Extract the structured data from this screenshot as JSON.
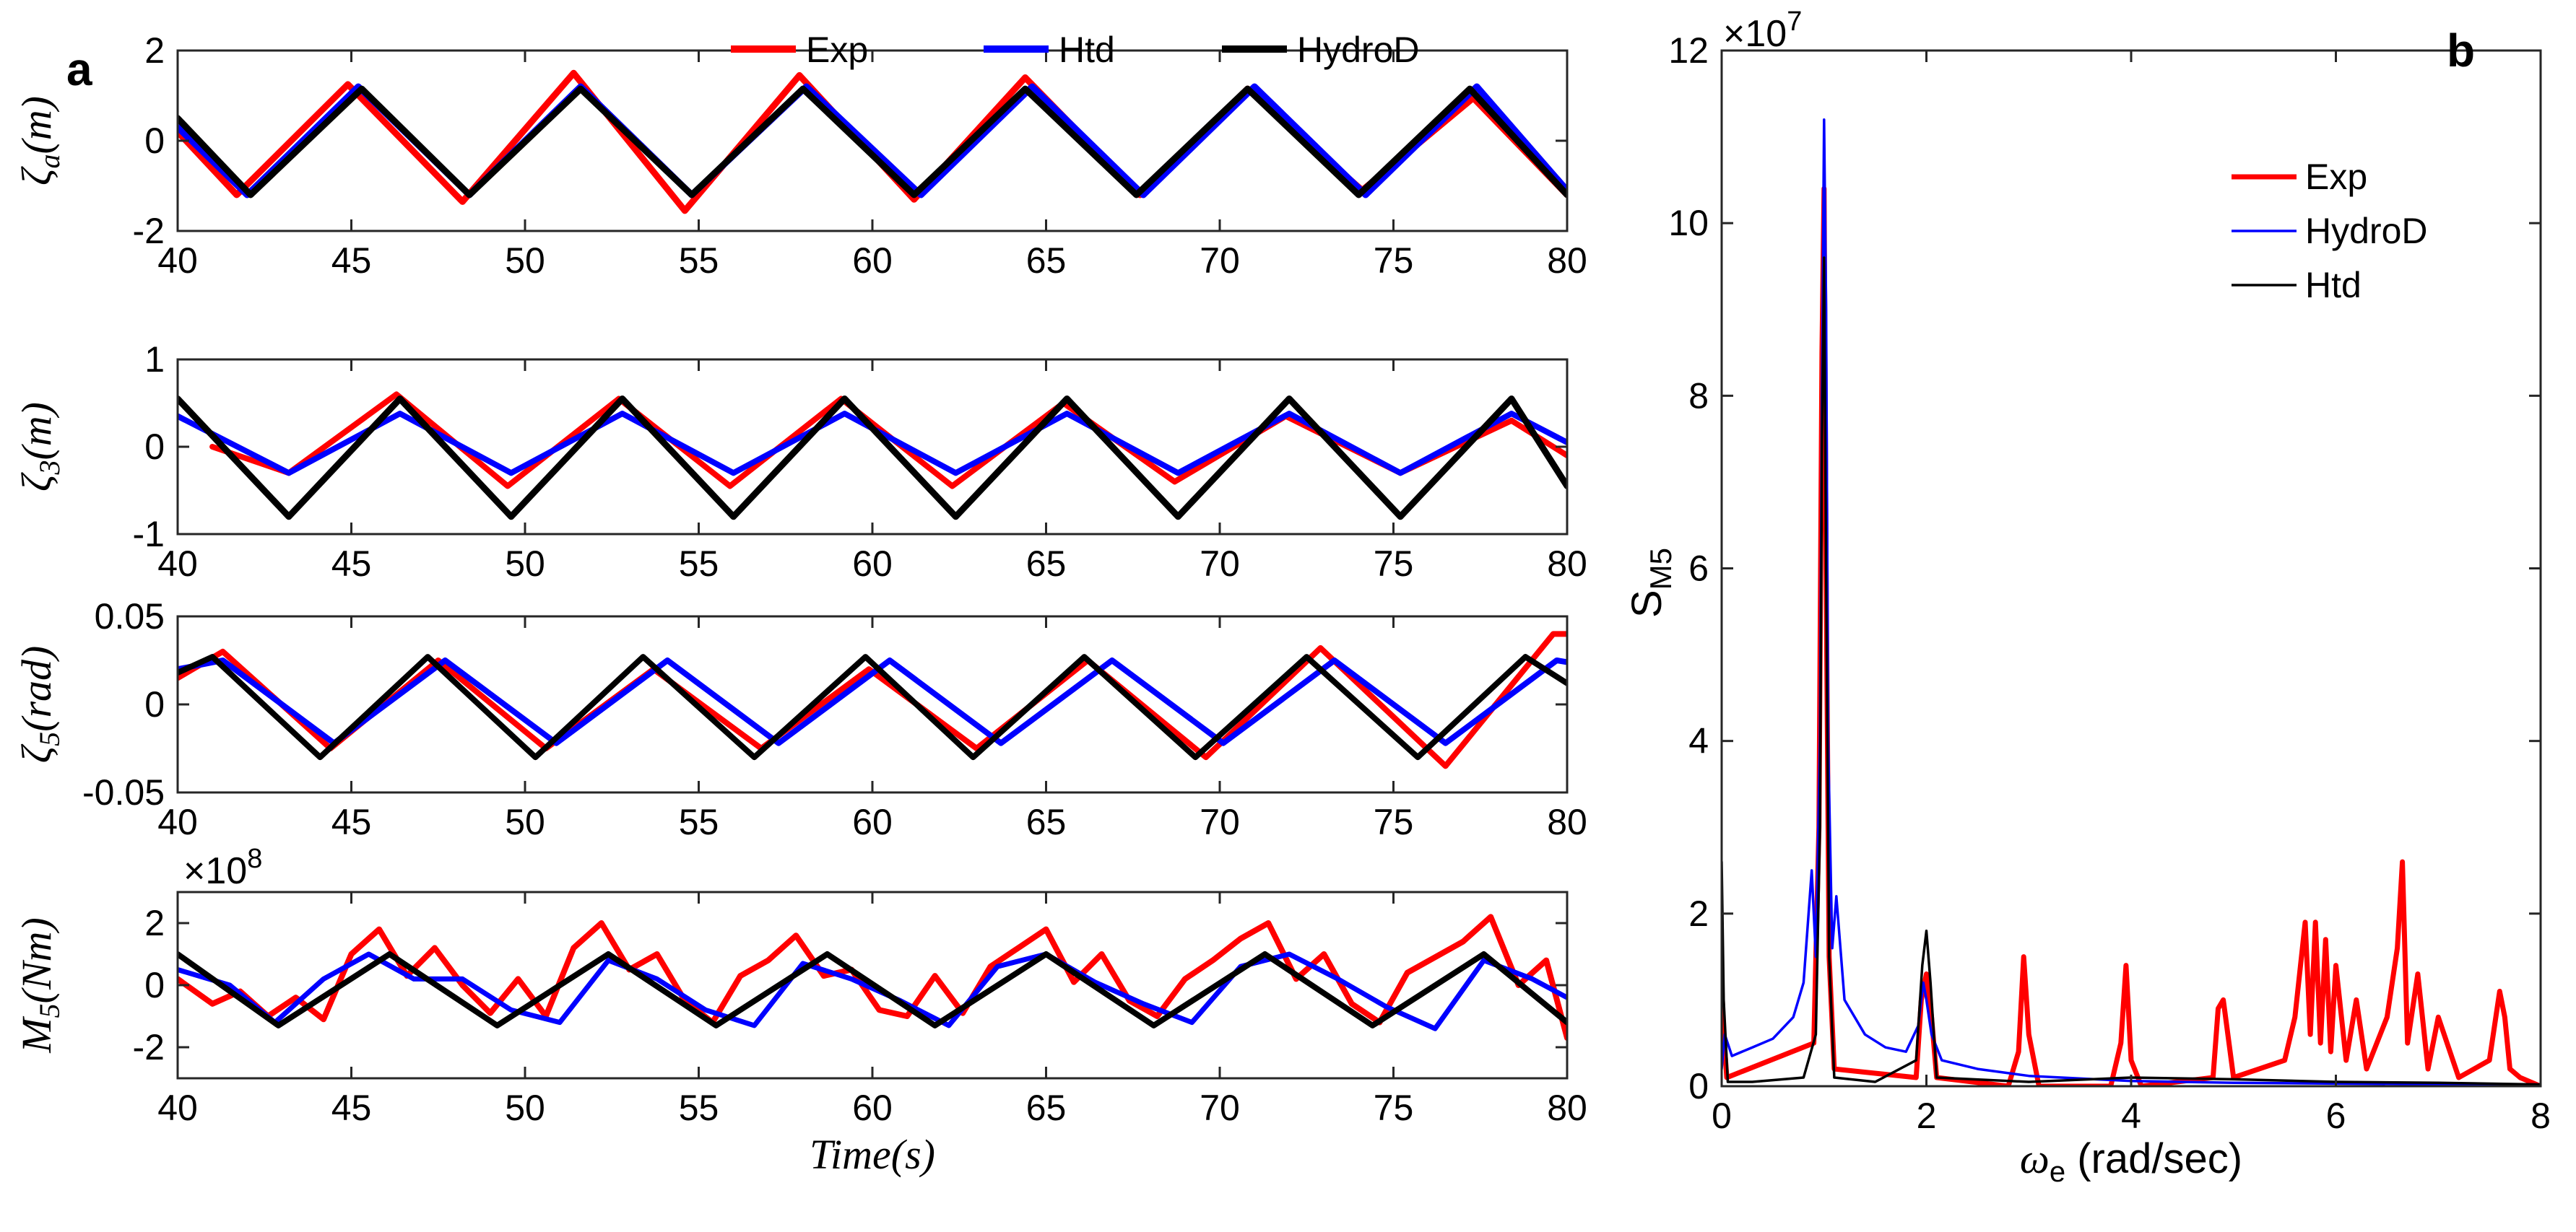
{
  "figure": {
    "panel_a_label": "a",
    "panel_b_label": "b",
    "x_axis_title": "Time(s)"
  },
  "legend_a": [
    {
      "label": "Exp",
      "color": "#ff0000"
    },
    {
      "label": "Htd",
      "color": "#0000ff"
    },
    {
      "label": "HydroD",
      "color": "#000000"
    }
  ],
  "legend_b": [
    {
      "label": "Exp",
      "color": "#ff0000"
    },
    {
      "label": "HydroD",
      "color": "#0000ff"
    },
    {
      "label": "Htd",
      "color": "#000000"
    }
  ],
  "chart_data": [
    {
      "type": "line",
      "panel": "a1",
      "ylabel": "ζa(m)",
      "xlabel": "",
      "xlim": [
        40,
        80
      ],
      "ylim": [
        -2,
        2
      ],
      "xticks": [
        40,
        45,
        50,
        55,
        60,
        65,
        70,
        75,
        80
      ],
      "yticks": [
        -2,
        0,
        2
      ],
      "series": [
        {
          "name": "Exp",
          "color": "#ff0000",
          "x": [
            40,
            41.7,
            44.9,
            48.2,
            51.4,
            54.6,
            57.9,
            61.2,
            64.4,
            67.7,
            70.8,
            74.1,
            77.3,
            80
          ],
          "y": [
            0.2,
            -1.2,
            1.25,
            -1.35,
            1.5,
            -1.55,
            1.45,
            -1.3,
            1.4,
            -1.2,
            1.15,
            -1.1,
            0.95,
            -1.2
          ]
        },
        {
          "name": "Htd",
          "color": "#0000ff",
          "x": [
            40,
            42.0,
            45.2,
            48.4,
            51.6,
            54.8,
            58.1,
            61.4,
            64.6,
            67.8,
            71.0,
            74.2,
            77.4,
            80
          ],
          "y": [
            0.3,
            -1.2,
            1.2,
            -1.2,
            1.2,
            -1.2,
            1.2,
            -1.2,
            1.2,
            -1.2,
            1.2,
            -1.2,
            1.2,
            -1.1
          ]
        },
        {
          "name": "HydroD",
          "color": "#000000",
          "x": [
            40,
            42.1,
            45.3,
            48.4,
            51.6,
            54.8,
            58.0,
            61.2,
            64.4,
            67.6,
            70.8,
            74.0,
            77.2,
            80
          ],
          "y": [
            0.5,
            -1.2,
            1.15,
            -1.2,
            1.15,
            -1.2,
            1.15,
            -1.2,
            1.15,
            -1.2,
            1.15,
            -1.2,
            1.15,
            -1.2
          ]
        }
      ]
    },
    {
      "type": "line",
      "panel": "a2",
      "ylabel": "ζ3(m)",
      "xlabel": "",
      "xlim": [
        40,
        80
      ],
      "ylim": [
        -1,
        1
      ],
      "xticks": [
        40,
        45,
        50,
        55,
        60,
        65,
        70,
        75,
        80
      ],
      "yticks": [
        -1,
        0,
        1
      ],
      "series": [
        {
          "name": "Exp",
          "color": "#ff0000",
          "x": [
            41,
            43.2,
            46.3,
            49.5,
            52.7,
            55.9,
            59.1,
            62.3,
            65.5,
            68.7,
            71.9,
            75.2,
            78.4,
            80
          ],
          "y": [
            0.0,
            -0.3,
            0.6,
            -0.45,
            0.55,
            -0.45,
            0.55,
            -0.45,
            0.5,
            -0.4,
            0.35,
            -0.3,
            0.3,
            -0.1
          ]
        },
        {
          "name": "Htd",
          "color": "#0000ff",
          "x": [
            40,
            43.2,
            46.4,
            49.6,
            52.8,
            56.0,
            59.2,
            62.4,
            65.6,
            68.8,
            72.0,
            75.2,
            78.4,
            80
          ],
          "y": [
            0.35,
            -0.3,
            0.38,
            -0.3,
            0.38,
            -0.3,
            0.38,
            -0.3,
            0.38,
            -0.3,
            0.38,
            -0.3,
            0.38,
            0.05
          ]
        },
        {
          "name": "HydroD",
          "color": "#000000",
          "x": [
            40,
            43.2,
            46.4,
            49.6,
            52.8,
            56.0,
            59.2,
            62.4,
            65.6,
            68.8,
            72.0,
            75.2,
            78.4,
            80
          ],
          "y": [
            0.55,
            -0.8,
            0.55,
            -0.8,
            0.55,
            -0.8,
            0.55,
            -0.8,
            0.55,
            -0.8,
            0.55,
            -0.8,
            0.55,
            -0.45
          ]
        }
      ]
    },
    {
      "type": "line",
      "panel": "a3",
      "ylabel": "ζ5(rad)",
      "xlabel": "",
      "xlim": [
        40,
        80
      ],
      "ylim": [
        -0.05,
        0.05
      ],
      "xticks": [
        40,
        45,
        50,
        55,
        60,
        65,
        70,
        75,
        80
      ],
      "yticks": [
        -0.05,
        0,
        0.05
      ],
      "ytick_labels": [
        "-0.05",
        "0",
        "0.05"
      ],
      "series": [
        {
          "name": "Exp",
          "color": "#ff0000",
          "x": [
            40,
            41.3,
            44.4,
            47.5,
            50.6,
            53.7,
            56.8,
            59.9,
            63.0,
            66.2,
            69.6,
            72.9,
            76.5,
            79.6,
            80
          ],
          "y": [
            0.015,
            0.03,
            -0.025,
            0.025,
            -0.025,
            0.02,
            -0.025,
            0.02,
            -0.025,
            0.025,
            -0.03,
            0.032,
            -0.035,
            0.04,
            0.04
          ]
        },
        {
          "name": "Htd",
          "color": "#0000ff",
          "x": [
            40,
            41.3,
            44.5,
            47.7,
            50.9,
            54.1,
            57.3,
            60.5,
            63.7,
            66.9,
            70.1,
            73.3,
            76.5,
            79.7,
            80
          ],
          "y": [
            0.02,
            0.025,
            -0.022,
            0.025,
            -0.022,
            0.025,
            -0.022,
            0.025,
            -0.022,
            0.025,
            -0.022,
            0.025,
            -0.022,
            0.025,
            0.024
          ]
        },
        {
          "name": "HydroD",
          "color": "#000000",
          "x": [
            40,
            41.0,
            44.1,
            47.2,
            50.3,
            53.4,
            56.6,
            59.8,
            62.9,
            66.1,
            69.3,
            72.5,
            75.7,
            78.8,
            80
          ],
          "y": [
            0.018,
            0.027,
            -0.03,
            0.027,
            -0.03,
            0.027,
            -0.03,
            0.027,
            -0.03,
            0.027,
            -0.03,
            0.027,
            -0.03,
            0.027,
            0.012
          ]
        }
      ]
    },
    {
      "type": "line",
      "panel": "a4",
      "ylabel": "M5(Nm)",
      "xlabel": "Time(s)",
      "xlim": [
        40,
        80
      ],
      "ylim": [
        -3,
        3
      ],
      "y_multiplier": "×10^8",
      "xticks": [
        40,
        45,
        50,
        55,
        60,
        65,
        70,
        75,
        80
      ],
      "yticks": [
        -2,
        0,
        2
      ],
      "series": [
        {
          "name": "Exp",
          "color": "#ff0000",
          "x": [
            40,
            41,
            41.8,
            42.6,
            43.4,
            44.2,
            45,
            45.8,
            46.6,
            47.4,
            48.2,
            49,
            49.8,
            50.6,
            51.4,
            52.2,
            53,
            53.8,
            54.6,
            55.4,
            56.2,
            57,
            57.8,
            58.6,
            59.4,
            60.2,
            61,
            61.8,
            62.6,
            63.4,
            64.2,
            65,
            65.8,
            66.6,
            67.4,
            68.2,
            69,
            69.8,
            70.6,
            71.4,
            72.2,
            73,
            73.8,
            74.6,
            75.4,
            76.2,
            77,
            77.8,
            78.6,
            79.4,
            80
          ],
          "y": [
            0.2,
            -0.6,
            -0.2,
            -1.0,
            -0.4,
            -1.1,
            1.0,
            1.8,
            0.3,
            1.2,
            0.0,
            -0.9,
            0.2,
            -1.0,
            1.2,
            2.0,
            0.5,
            1.0,
            -0.5,
            -1.2,
            0.3,
            0.8,
            1.6,
            0.3,
            0.5,
            -0.8,
            -1.0,
            0.3,
            -0.9,
            0.6,
            1.2,
            1.8,
            0.1,
            1.0,
            -0.5,
            -1.0,
            0.2,
            0.8,
            1.5,
            2.0,
            0.2,
            1.0,
            -0.6,
            -1.2,
            0.4,
            0.9,
            1.4,
            2.2,
            0.0,
            0.8,
            -1.7
          ]
        },
        {
          "name": "Htd",
          "color": "#0000ff",
          "x": [
            40,
            41.5,
            42.8,
            44.2,
            45.5,
            46.8,
            48.2,
            49.6,
            51.0,
            52.4,
            53.8,
            55.2,
            56.6,
            58.0,
            59.4,
            60.8,
            62.2,
            63.6,
            65.0,
            66.4,
            67.8,
            69.2,
            70.6,
            72.0,
            73.4,
            74.8,
            76.2,
            77.6,
            79.0,
            80
          ],
          "y": [
            0.5,
            0.0,
            -1.2,
            0.2,
            1.0,
            0.2,
            0.2,
            -0.8,
            -1.2,
            0.8,
            0.2,
            -0.8,
            -1.3,
            0.7,
            0.2,
            -0.5,
            -1.3,
            0.6,
            1.0,
            0.1,
            -0.6,
            -1.2,
            0.6,
            1.0,
            0.2,
            -0.7,
            -1.4,
            0.8,
            0.2,
            -0.4
          ]
        },
        {
          "name": "HydroD",
          "color": "#000000",
          "x": [
            40,
            42.9,
            46.1,
            49.2,
            52.4,
            55.5,
            58.7,
            61.8,
            65.0,
            68.1,
            71.3,
            74.4,
            77.6,
            80
          ],
          "y": [
            1.0,
            -1.3,
            1.0,
            -1.3,
            1.0,
            -1.3,
            1.0,
            -1.3,
            1.0,
            -1.3,
            1.0,
            -1.3,
            1.0,
            -1.2
          ]
        }
      ]
    },
    {
      "type": "line",
      "panel": "b",
      "ylabel": "S_M5",
      "xlabel": "ωe (rad/sec)",
      "xlim": [
        0,
        8
      ],
      "ylim": [
        0,
        12
      ],
      "y_multiplier": "×10^7",
      "xticks": [
        0,
        2,
        4,
        6,
        8
      ],
      "yticks": [
        0,
        2,
        4,
        6,
        8,
        10,
        12
      ],
      "series": [
        {
          "name": "Exp",
          "color": "#ff0000",
          "x": [
            0,
            0.02,
            0.05,
            0.9,
            0.95,
            0.98,
            1.0,
            1.02,
            1.05,
            1.1,
            1.9,
            1.95,
            2.0,
            2.05,
            2.1,
            2.8,
            2.9,
            2.95,
            3.0,
            3.1,
            3.8,
            3.9,
            3.95,
            4.0,
            4.1,
            4.8,
            4.85,
            4.9,
            5.0,
            5.5,
            5.6,
            5.7,
            5.75,
            5.8,
            5.85,
            5.9,
            5.95,
            6.0,
            6.1,
            6.2,
            6.3,
            6.5,
            6.6,
            6.65,
            6.7,
            6.8,
            6.9,
            7.0,
            7.2,
            7.5,
            7.6,
            7.65,
            7.7,
            7.8,
            8.0
          ],
          "y": [
            1.2,
            0.6,
            0.1,
            0.5,
            3.0,
            8.5,
            10.4,
            6.0,
            1.5,
            0.2,
            0.1,
            1.0,
            1.3,
            0.8,
            0.1,
            0.0,
            0.4,
            1.5,
            0.6,
            0.0,
            0.0,
            0.5,
            1.4,
            0.3,
            0.0,
            0.1,
            0.9,
            1.0,
            0.1,
            0.3,
            0.8,
            1.9,
            0.6,
            1.9,
            0.5,
            1.7,
            0.4,
            1.4,
            0.3,
            1.0,
            0.2,
            0.8,
            1.6,
            2.6,
            0.5,
            1.3,
            0.2,
            0.8,
            0.1,
            0.3,
            1.1,
            0.8,
            0.2,
            0.1,
            0.0
          ]
        },
        {
          "name": "HydroD",
          "color": "#0000ff",
          "x": [
            0,
            0.03,
            0.1,
            0.3,
            0.5,
            0.7,
            0.8,
            0.88,
            0.92,
            0.96,
            0.98,
            1.0,
            1.02,
            1.04,
            1.08,
            1.12,
            1.2,
            1.4,
            1.6,
            1.8,
            1.92,
            1.97,
            2.0,
            2.05,
            2.15,
            2.5,
            3.0,
            4.0,
            5.0,
            6.0,
            8.0
          ],
          "y": [
            0.2,
            0.6,
            0.35,
            0.45,
            0.55,
            0.8,
            1.2,
            2.5,
            1.5,
            4.0,
            8.0,
            11.2,
            9.0,
            4.0,
            1.6,
            2.2,
            1.0,
            0.6,
            0.45,
            0.4,
            0.7,
            1.2,
            1.0,
            0.6,
            0.3,
            0.2,
            0.12,
            0.06,
            0.04,
            0.03,
            0.02
          ]
        },
        {
          "name": "Htd",
          "color": "#000000",
          "x": [
            0,
            0.02,
            0.06,
            0.3,
            0.8,
            0.92,
            0.96,
            0.98,
            1.0,
            1.02,
            1.05,
            1.1,
            1.5,
            1.9,
            1.96,
            2.0,
            2.04,
            2.1,
            3.0,
            4.0,
            5.0,
            6.0,
            7.0,
            8.0
          ],
          "y": [
            2.6,
            1.0,
            0.05,
            0.05,
            0.1,
            0.6,
            3.0,
            7.5,
            9.6,
            6.0,
            1.5,
            0.1,
            0.05,
            0.3,
            1.4,
            1.8,
            1.2,
            0.1,
            0.05,
            0.1,
            0.08,
            0.05,
            0.04,
            0.02
          ]
        }
      ]
    }
  ]
}
